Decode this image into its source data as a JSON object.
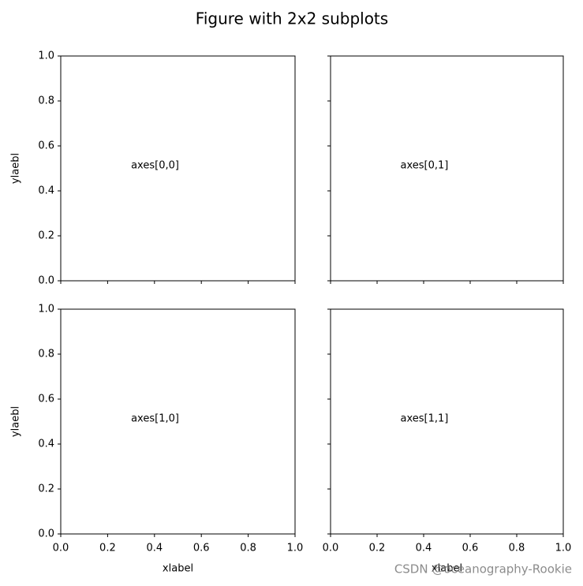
{
  "title": "Figure with 2x2 subplots",
  "watermark": "CSDN @oceanography-Rookie",
  "chart_data": [
    {
      "type": "text",
      "annotation": {
        "text": "axes[0,0]",
        "x": 0.3,
        "y": 0.5
      },
      "xlim": [
        0,
        1
      ],
      "ylim": [
        0,
        1
      ],
      "xticks": [
        0,
        0.2,
        0.4,
        0.6,
        0.8,
        1
      ],
      "yticks": [
        {
          "value": 0,
          "label": "0.0"
        },
        {
          "value": 0.2,
          "label": "0.2"
        },
        {
          "value": 0.4,
          "label": "0.4"
        },
        {
          "value": 0.6,
          "label": "0.6"
        },
        {
          "value": 0.8,
          "label": "0.8"
        },
        {
          "value": 1,
          "label": "1.0"
        }
      ],
      "ylabel": "ylaebl"
    },
    {
      "type": "text",
      "annotation": {
        "text": "axes[0,1]",
        "x": 0.3,
        "y": 0.5
      },
      "xlim": [
        0,
        1
      ],
      "ylim": [
        0,
        1
      ],
      "xticks": [
        0,
        0.2,
        0.4,
        0.6,
        0.8,
        1
      ],
      "yticks": [
        0,
        0.2,
        0.4,
        0.6,
        0.8,
        1
      ]
    },
    {
      "type": "text",
      "annotation": {
        "text": "axes[1,0]",
        "x": 0.3,
        "y": 0.5
      },
      "xlim": [
        0,
        1
      ],
      "ylim": [
        0,
        1
      ],
      "xticks": [
        {
          "value": 0,
          "label": "0.0"
        },
        {
          "value": 0.2,
          "label": "0.2"
        },
        {
          "value": 0.4,
          "label": "0.4"
        },
        {
          "value": 0.6,
          "label": "0.6"
        },
        {
          "value": 0.8,
          "label": "0.8"
        },
        {
          "value": 1,
          "label": "1.0"
        }
      ],
      "yticks": [
        {
          "value": 0,
          "label": "0.0"
        },
        {
          "value": 0.2,
          "label": "0.2"
        },
        {
          "value": 0.4,
          "label": "0.4"
        },
        {
          "value": 0.6,
          "label": "0.6"
        },
        {
          "value": 0.8,
          "label": "0.8"
        },
        {
          "value": 1,
          "label": "1.0"
        }
      ],
      "xlabel": "xlabel",
      "ylabel": "ylaebl"
    },
    {
      "type": "text",
      "annotation": {
        "text": "axes[1,1]",
        "x": 0.3,
        "y": 0.5
      },
      "xlim": [
        0,
        1
      ],
      "ylim": [
        0,
        1
      ],
      "xticks": [
        {
          "value": 0,
          "label": "0.0"
        },
        {
          "value": 0.2,
          "label": "0.2"
        },
        {
          "value": 0.4,
          "label": "0.4"
        },
        {
          "value": 0.6,
          "label": "0.6"
        },
        {
          "value": 0.8,
          "label": "0.8"
        },
        {
          "value": 1,
          "label": "1.0"
        }
      ],
      "yticks": [
        0,
        0.2,
        0.4,
        0.6,
        0.8,
        1
      ],
      "xlabel": "xlabel"
    }
  ]
}
